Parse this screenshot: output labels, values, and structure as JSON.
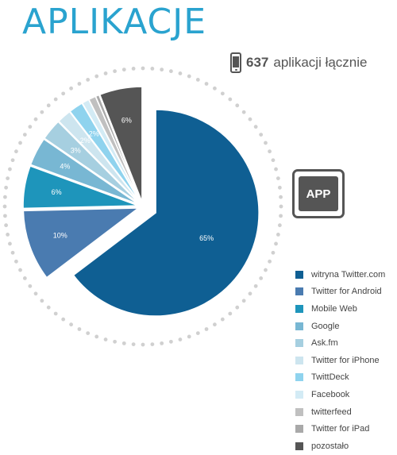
{
  "title": "APLIKACJE",
  "total": {
    "count": "637",
    "label": "aplikacji łącznie"
  },
  "app_badge": "APP",
  "chart_data": {
    "type": "pie",
    "title": "APLIKACJE",
    "slices": [
      {
        "label": "witryna Twitter.com",
        "value": 65,
        "display": "65%",
        "color": "#0f5f93"
      },
      {
        "label": "Twitter for Android",
        "value": 10,
        "display": "10%",
        "color": "#4a7bb0"
      },
      {
        "label": "Mobile Web",
        "value": 6,
        "display": "6%",
        "color": "#1e95bb"
      },
      {
        "label": "Google",
        "value": 4,
        "display": "4%",
        "color": "#78b7d3"
      },
      {
        "label": "Ask.fm",
        "value": 3,
        "display": "3%",
        "color": "#a6cfe0"
      },
      {
        "label": "Twitter for iPhone",
        "value": 2,
        "display": "2%",
        "color": "#cde5ef"
      },
      {
        "label": "TwittDeck",
        "value": 2,
        "display": "2%",
        "color": "#8fd3ee"
      },
      {
        "label": "Facebook",
        "value": 1,
        "display": "",
        "color": "#d3ebf5"
      },
      {
        "label": "twitterfeed",
        "value": 1,
        "display": "",
        "color": "#c0c0c0"
      },
      {
        "label": "Twitter for iPad",
        "value": 0.5,
        "display": "",
        "color": "#a9a9a9"
      },
      {
        "label": "pozostało",
        "value": 6,
        "display": "6%",
        "color": "#555555"
      }
    ],
    "legend_position": "bottom-right"
  }
}
